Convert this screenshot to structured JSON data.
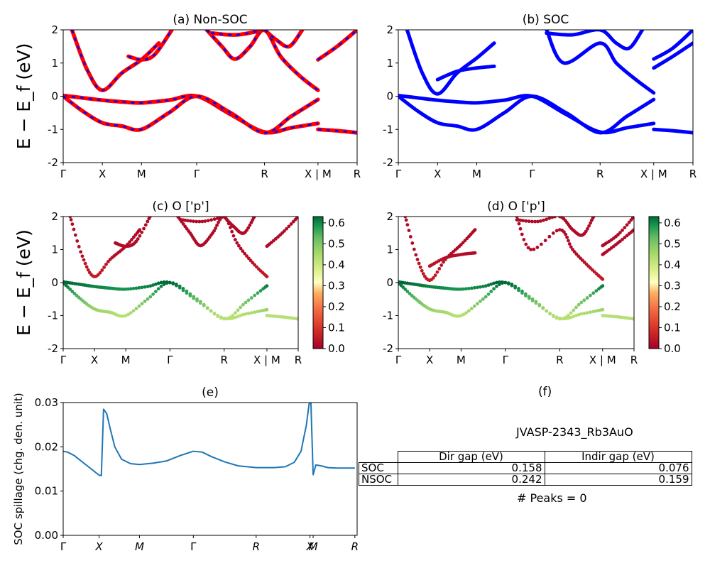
{
  "chart_data": [
    {
      "id": "a",
      "type": "line",
      "title": "(a) Non-SOC",
      "ylabel": "E − E_f (eV)",
      "ylim": [
        -2,
        2
      ],
      "yticks": [
        -2,
        -1,
        0,
        1,
        2
      ],
      "xticks": [
        "Γ",
        "X",
        "M",
        "Γ",
        "R",
        "X | M",
        "R"
      ],
      "xtick_pos": [
        0,
        0.9,
        1.8,
        3.07,
        4.63,
        5.86,
        6.76
      ],
      "xlim": [
        0,
        6.76
      ],
      "series": [
        {
          "x": [
            0,
            0.45,
            0.9,
            1.35,
            1.8,
            2.43,
            3.07,
            3.85,
            4.63,
            5.25,
            5.86
          ],
          "y": [
            0.02,
            -0.05,
            -0.12,
            -0.17,
            -0.2,
            -0.12,
            0.0,
            -0.55,
            -1.08,
            -0.95,
            -0.82
          ]
        },
        {
          "x": [
            0,
            0.45,
            0.9,
            1.35,
            1.8,
            2.43,
            3.07,
            3.85,
            4.63,
            5.25,
            5.86
          ],
          "y": [
            0.0,
            -0.45,
            -0.8,
            -0.9,
            -1.0,
            -0.5,
            0.0,
            -0.5,
            -1.1,
            -0.6,
            -0.1
          ]
        },
        {
          "x": [
            0.2,
            0.55,
            0.9,
            1.35,
            1.8,
            2.2
          ],
          "y": [
            2.0,
            0.8,
            0.18,
            0.7,
            1.1,
            1.6
          ]
        },
        {
          "x": [
            1.5,
            1.8,
            2.1,
            2.5
          ],
          "y": [
            1.2,
            1.1,
            1.25,
            2.0
          ]
        },
        {
          "x": [
            3.3,
            3.65,
            3.95,
            4.3,
            4.63,
            5.0,
            5.45,
            5.86
          ],
          "y": [
            2.0,
            1.5,
            1.12,
            1.5,
            2.0,
            1.2,
            0.6,
            0.18
          ]
        },
        {
          "x": [
            3.4,
            4.0,
            4.63
          ],
          "y": [
            1.9,
            1.85,
            2.0
          ]
        },
        {
          "x": [
            4.63,
            4.9,
            5.2,
            5.5
          ],
          "y": [
            2.0,
            1.7,
            1.5,
            2.0
          ]
        },
        {
          "x": [
            5.86,
            6.3,
            6.76
          ],
          "y": [
            1.1,
            1.5,
            2.0
          ]
        },
        {
          "x": [
            5.86,
            6.3,
            6.76
          ],
          "y": [
            -1.0,
            -1.04,
            -1.1
          ]
        }
      ]
    },
    {
      "id": "b",
      "type": "line",
      "title": "(b) SOC",
      "ylim": [
        -2,
        2
      ],
      "yticks": [
        -2,
        -1,
        0,
        1,
        2
      ],
      "xticks": [
        "Γ",
        "X",
        "M",
        "Γ",
        "R",
        "X | M",
        "R"
      ],
      "xtick_pos": [
        0,
        0.9,
        1.8,
        3.07,
        4.63,
        5.86,
        6.76
      ],
      "xlim": [
        0,
        6.76
      ],
      "series": [
        {
          "x": [
            0,
            0.45,
            0.9,
            1.35,
            1.8,
            2.43,
            3.07,
            3.85,
            4.63,
            5.25,
            5.86
          ],
          "y": [
            0.02,
            -0.05,
            -0.12,
            -0.17,
            -0.2,
            -0.12,
            0.0,
            -0.55,
            -1.08,
            -0.95,
            -0.82
          ]
        },
        {
          "x": [
            0,
            0.45,
            0.9,
            1.35,
            1.8,
            2.43,
            3.07,
            3.85,
            4.63,
            5.25,
            5.86
          ],
          "y": [
            0.0,
            -0.45,
            -0.8,
            -0.9,
            -1.0,
            -0.5,
            0.0,
            -0.5,
            -1.1,
            -0.6,
            -0.1
          ]
        },
        {
          "x": [
            0.2,
            0.55,
            0.9,
            1.35,
            1.8,
            2.2
          ],
          "y": [
            2.0,
            0.7,
            0.07,
            0.7,
            1.15,
            1.6
          ]
        },
        {
          "x": [
            0.9,
            1.35,
            1.8,
            2.2
          ],
          "y": [
            0.5,
            0.75,
            0.85,
            0.9
          ]
        },
        {
          "x": [
            3.4,
            3.8,
            4.63,
            5.0,
            5.45,
            5.86
          ],
          "y": [
            2.0,
            1.0,
            1.6,
            1.0,
            0.5,
            0.1
          ]
        },
        {
          "x": [
            3.4,
            4.0,
            4.63,
            5.0,
            5.3,
            5.6
          ],
          "y": [
            1.9,
            1.85,
            2.0,
            1.6,
            1.45,
            2.0
          ]
        },
        {
          "x": [
            5.86,
            6.3,
            6.76
          ],
          "y": [
            1.12,
            1.45,
            2.0
          ]
        },
        {
          "x": [
            5.86,
            6.3,
            6.76
          ],
          "y": [
            0.85,
            1.2,
            1.6
          ]
        },
        {
          "x": [
            5.86,
            6.3,
            6.76
          ],
          "y": [
            -1.0,
            -1.04,
            -1.1
          ]
        }
      ]
    },
    {
      "id": "c",
      "type": "scatter",
      "title": "(c)  O ['p']",
      "ylabel": "E − E_f (eV)",
      "ylim": [
        -2,
        2
      ],
      "yticks": [
        -2,
        -1,
        0,
        1,
        2
      ],
      "xticks": [
        "Γ",
        "X",
        "M",
        "Γ",
        "R",
        "X | M",
        "R"
      ],
      "xtick_pos": [
        0,
        0.9,
        1.8,
        3.07,
        4.63,
        5.86,
        6.76
      ],
      "xlim": [
        0,
        6.76
      ],
      "colorbar_ticks": [
        "0.0",
        "0.1",
        "0.2",
        "0.3",
        "0.4",
        "0.5",
        "0.6"
      ],
      "colorbar_range": [
        0,
        0.63
      ]
    },
    {
      "id": "d",
      "type": "scatter",
      "title": "(d) O ['p']",
      "ylim": [
        -2,
        2
      ],
      "yticks": [
        -2,
        -1,
        0,
        1,
        2
      ],
      "xticks": [
        "Γ",
        "X",
        "M",
        "Γ",
        "R",
        "X | M",
        "R"
      ],
      "xtick_pos": [
        0,
        0.9,
        1.8,
        3.07,
        4.63,
        5.86,
        6.76
      ],
      "xlim": [
        0,
        6.76
      ],
      "colorbar_ticks": [
        "0.0",
        "0.1",
        "0.2",
        "0.3",
        "0.4",
        "0.5",
        "0.6"
      ],
      "colorbar_range": [
        0,
        0.63
      ]
    },
    {
      "id": "e",
      "type": "line",
      "title": "(e)",
      "ylabel": "SOC spillage (chg. den. unit)",
      "ylim": [
        0.0,
        0.03
      ],
      "yticks": [
        "0.00",
        "0.01",
        "0.02",
        "0.03"
      ],
      "ytick_vals": [
        0.0,
        0.01,
        0.02,
        0.03
      ],
      "xticks": [
        "Γ",
        "X",
        "M",
        "Γ",
        "R",
        "X",
        "M",
        "R"
      ],
      "xtick_pos": [
        0,
        0.8,
        1.7,
        2.9,
        4.3,
        5.5,
        5.57,
        6.5
      ],
      "xlim": [
        0,
        6.55
      ],
      "series": [
        {
          "x": [
            0,
            0.1,
            0.25,
            0.4,
            0.6,
            0.8,
            0.85,
            0.9,
            0.97,
            1.05,
            1.15,
            1.3,
            1.5,
            1.7,
            2.0,
            2.3,
            2.6,
            2.9,
            3.1,
            3.3,
            3.6,
            3.9,
            4.3,
            4.7,
            4.95,
            5.15,
            5.3,
            5.42,
            5.48,
            5.52,
            5.57,
            5.63,
            5.75,
            5.9,
            6.1,
            6.3,
            6.5
          ],
          "y": [
            0.019,
            0.0188,
            0.018,
            0.0168,
            0.0152,
            0.0136,
            0.0135,
            0.0285,
            0.0275,
            0.024,
            0.02,
            0.0172,
            0.0162,
            0.016,
            0.0163,
            0.0168,
            0.018,
            0.019,
            0.0188,
            0.0178,
            0.0166,
            0.0157,
            0.0153,
            0.0153,
            0.0155,
            0.0165,
            0.019,
            0.025,
            0.0297,
            0.03,
            0.0137,
            0.0159,
            0.0157,
            0.0153,
            0.0152,
            0.0152,
            0.0152
          ]
        }
      ]
    }
  ],
  "panel_f": {
    "title": "(f)",
    "caption": "JVASP-2343_Rb3AuO",
    "columns": [
      "Dir gap (eV)",
      "Indir gap (eV)"
    ],
    "rows": [
      {
        "label": "SOC",
        "dir": "0.158",
        "indir": "0.076"
      },
      {
        "label": "NSOC",
        "dir": "0.242",
        "indir": "0.159"
      }
    ],
    "footer": "# Peaks = 0"
  }
}
